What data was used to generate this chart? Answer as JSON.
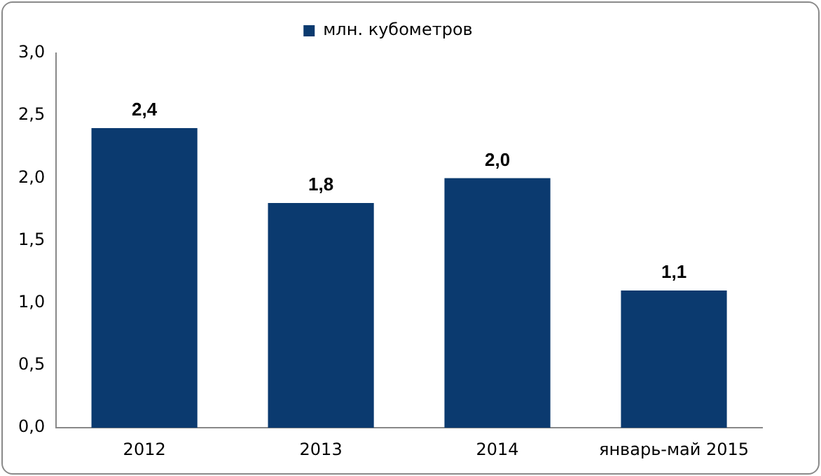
{
  "chart_data": {
    "type": "bar",
    "categories": [
      "2012",
      "2013",
      "2014",
      "январь-май 2015"
    ],
    "series": [
      {
        "name": "млн. кубометров",
        "color": "#0b3a6f",
        "values": [
          2.4,
          1.8,
          2.0,
          1.1
        ],
        "value_labels": [
          "2,4",
          "1,8",
          "2,0",
          "1,1"
        ]
      }
    ],
    "ylim": [
      0,
      3
    ],
    "yticks": [
      {
        "value": 0,
        "label": "0,0"
      },
      {
        "value": 0.5,
        "label": "0,5"
      },
      {
        "value": 1,
        "label": "1,0"
      },
      {
        "value": 1.5,
        "label": "1,5"
      },
      {
        "value": 2,
        "label": "2,0"
      },
      {
        "value": 2.5,
        "label": "2,5"
      },
      {
        "value": 3,
        "label": "3,0"
      }
    ],
    "grid": false,
    "legend": "top"
  }
}
